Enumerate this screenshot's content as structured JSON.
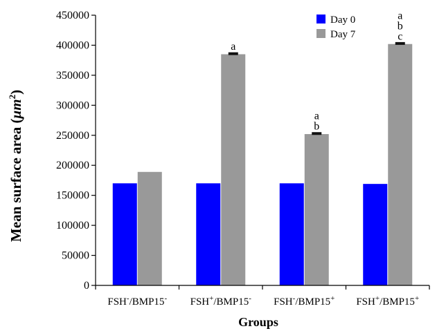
{
  "chart_data": {
    "type": "bar",
    "categories": [
      {
        "base": "FSH",
        "sup1": "-",
        "mid": "/BMP15",
        "sup2": "-"
      },
      {
        "base": "FSH",
        "sup1": "+",
        "mid": "/BMP15",
        "sup2": "-"
      },
      {
        "base": "FSH",
        "sup1": "-",
        "mid": "/BMP15",
        "sup2": "+"
      },
      {
        "base": "FSH",
        "sup1": "+",
        "mid": "/BMP15",
        "sup2": "+"
      }
    ],
    "series": [
      {
        "name": "Day 0",
        "color": "#0000ff",
        "values": [
          170000,
          170000,
          170000,
          169000
        ],
        "errors": [
          0,
          0,
          0,
          0
        ]
      },
      {
        "name": "Day 7",
        "color": "#999999",
        "values": [
          189000,
          385000,
          252000,
          402000
        ],
        "errors": [
          0,
          1500,
          1500,
          1500
        ]
      }
    ],
    "annotations": [
      {
        "category": 1,
        "series": 1,
        "lines": [
          "a"
        ]
      },
      {
        "category": 2,
        "series": 1,
        "lines": [
          "a",
          "b"
        ]
      },
      {
        "category": 3,
        "series": 1,
        "lines": [
          "a",
          "b",
          "c"
        ]
      }
    ],
    "ylabel": {
      "main": "Mean surface area (",
      "unit": "μm",
      "sup": "2",
      "close": ")"
    },
    "xlabel": "Groups",
    "ylim": [
      0,
      450000
    ],
    "yticks": [
      0,
      50000,
      100000,
      150000,
      200000,
      250000,
      300000,
      350000,
      400000,
      450000
    ],
    "legend_position": "top-right",
    "grid": false
  }
}
